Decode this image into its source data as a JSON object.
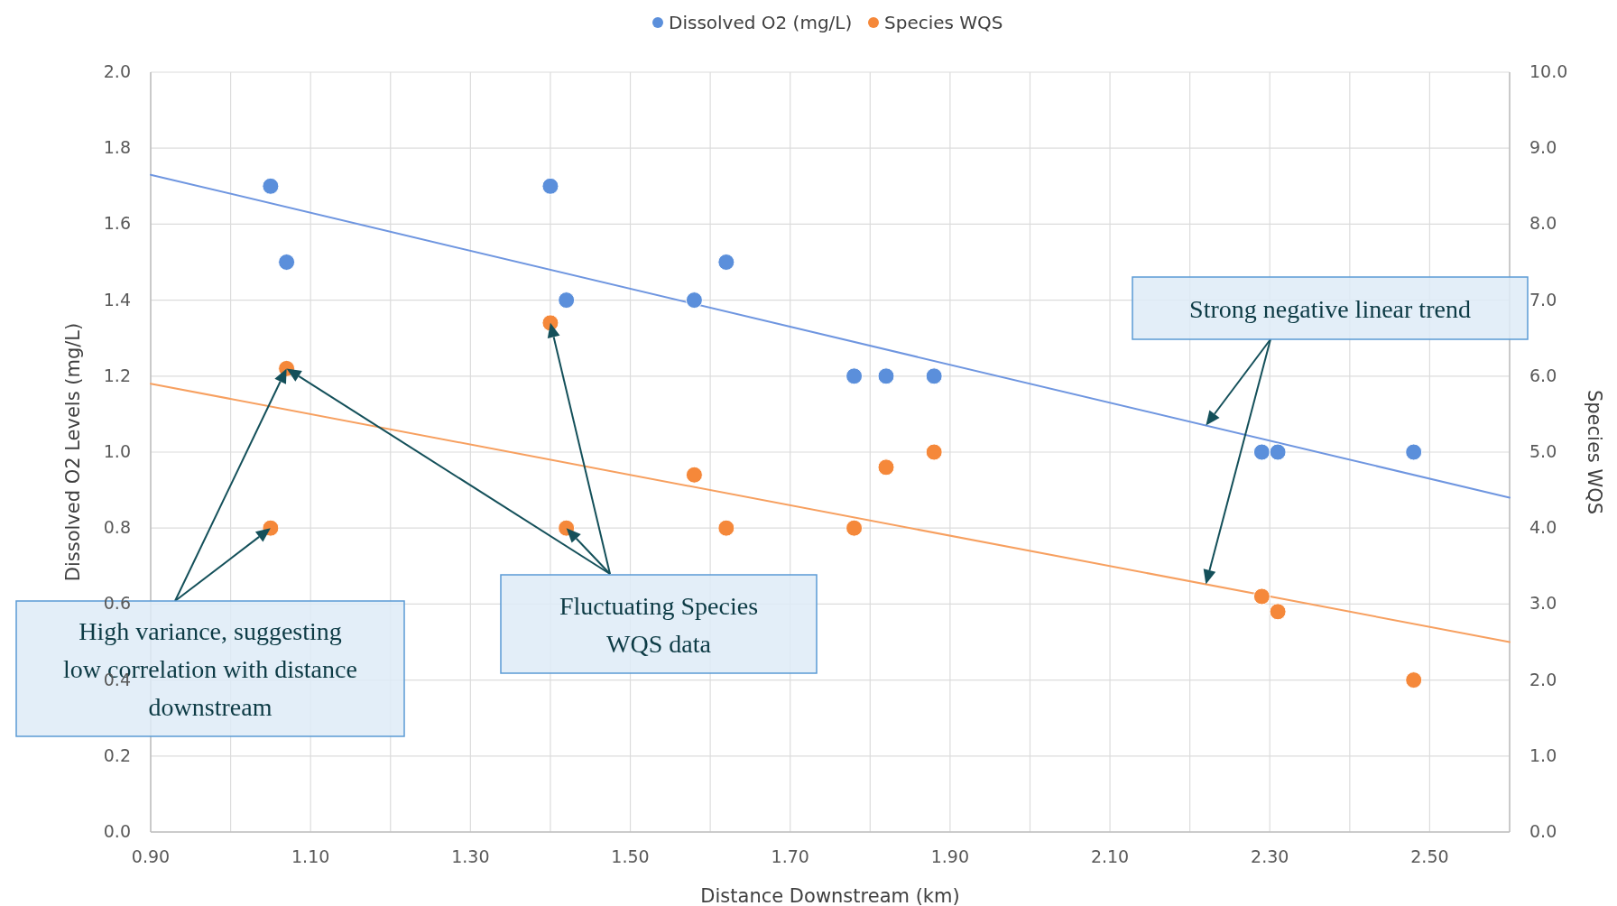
{
  "chart_data": {
    "type": "scatter",
    "xlabel": "Distance Downstream (km)",
    "ylabel": "Dissolved O2 Levels (mg/L)",
    "y2label": "Species WQS",
    "xlim": [
      0.9,
      2.6
    ],
    "xticks": [
      {
        "value": 0.9,
        "label": "0.90"
      },
      {
        "value": 1.0,
        "label": null
      },
      {
        "value": 1.1,
        "label": "1.10"
      },
      {
        "value": 1.2,
        "label": null
      },
      {
        "value": 1.3,
        "label": "1.30"
      },
      {
        "value": 1.4,
        "label": null
      },
      {
        "value": 1.5,
        "label": "1.50"
      },
      {
        "value": 1.6,
        "label": null
      },
      {
        "value": 1.7,
        "label": "1.70"
      },
      {
        "value": 1.8,
        "label": null
      },
      {
        "value": 1.9,
        "label": "1.90"
      },
      {
        "value": 2.0,
        "label": null
      },
      {
        "value": 2.1,
        "label": "2.10"
      },
      {
        "value": 2.2,
        "label": null
      },
      {
        "value": 2.3,
        "label": "2.30"
      },
      {
        "value": 2.4,
        "label": null
      },
      {
        "value": 2.5,
        "label": "2.50"
      },
      {
        "value": 2.6,
        "label": null
      }
    ],
    "ylim": [
      0,
      2
    ],
    "yticks": [
      {
        "value": 0,
        "label": "0.0"
      },
      {
        "value": 0.2,
        "label": "0.2"
      },
      {
        "value": 0.4,
        "label": "0.4"
      },
      {
        "value": 0.6,
        "label": "0.6"
      },
      {
        "value": 0.8,
        "label": "0.8"
      },
      {
        "value": 1.0,
        "label": "1.0"
      },
      {
        "value": 1.2,
        "label": "1.2"
      },
      {
        "value": 1.4,
        "label": "1.4"
      },
      {
        "value": 1.6,
        "label": "1.6"
      },
      {
        "value": 1.8,
        "label": "1.8"
      },
      {
        "value": 2.0,
        "label": "2.0"
      }
    ],
    "y2lim": [
      0,
      10
    ],
    "y2ticks": [
      {
        "value": 0,
        "label": "0.0"
      },
      {
        "value": 1,
        "label": "1.0"
      },
      {
        "value": 2,
        "label": "2.0"
      },
      {
        "value": 3,
        "label": "3.0"
      },
      {
        "value": 4,
        "label": "4.0"
      },
      {
        "value": 5,
        "label": "5.0"
      },
      {
        "value": 6,
        "label": "6.0"
      },
      {
        "value": 7,
        "label": "7.0"
      },
      {
        "value": 8,
        "label": "8.0"
      },
      {
        "value": 9,
        "label": "9.0"
      },
      {
        "value": 10,
        "label": "10.0"
      }
    ],
    "grid": true,
    "legend": "top",
    "marker": "circle",
    "series": [
      {
        "name": "Dissolved O2 (mg/L)",
        "color": "#5b8fdb",
        "x": [
          1.05,
          1.07,
          1.4,
          1.42,
          1.58,
          1.62,
          1.78,
          1.82,
          1.88,
          2.29,
          2.31,
          2.48
        ],
        "values": [
          1.7,
          1.5,
          1.7,
          1.4,
          1.4,
          1.5,
          1.2,
          1.2,
          1.2,
          1.0,
          1.0,
          1.0
        ]
      },
      {
        "name": "Species WQS",
        "color": "#f5883a",
        "axis": "y2",
        "x": [
          1.05,
          1.07,
          1.4,
          1.42,
          1.58,
          1.62,
          1.78,
          1.82,
          1.88,
          2.29,
          2.31,
          2.48
        ],
        "values": [
          4.0,
          6.1,
          6.7,
          4.0,
          4.7,
          4.0,
          4.0,
          4.8,
          5.0,
          3.1,
          2.9,
          2.0
        ]
      },
      {
        "type": "line",
        "color": "#6f96e0",
        "x": [
          0.9,
          2.6
        ],
        "values": [
          1.73,
          0.88
        ],
        "marker": "none"
      },
      {
        "type": "line",
        "color": "#f7a060",
        "axis": "y2",
        "x": [
          0.9,
          2.6
        ],
        "values": [
          5.9,
          2.5
        ],
        "marker": "none"
      }
    ],
    "annotations": [
      "High variance, suggesting low correlation with distance downstream",
      "Fluctuating Species WQS data",
      "Strong negative linear trend"
    ]
  }
}
